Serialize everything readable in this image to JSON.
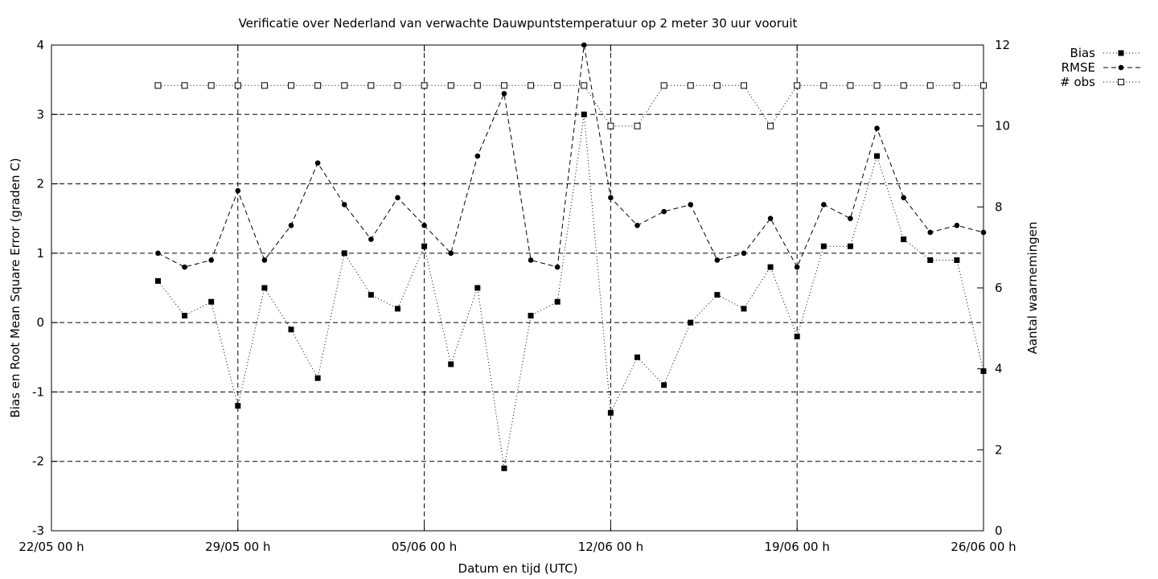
{
  "chart_data": {
    "type": "line",
    "title": "Verificatie over Nederland van verwachte Dauwpuntstemperatuur op 2 meter 30 uur vooruit",
    "xlabel": "Datum en tijd (UTC)",
    "ylabel": "Bias en Root Mean Square Error (graden C)",
    "y2label": "Aantal waarnemingen",
    "x_ticks": [
      "22/05 00 h",
      "29/05 00 h",
      "05/06 00 h",
      "12/06 00 h",
      "19/06 00 h",
      "26/06 00 h"
    ],
    "x_tick_days": [
      0,
      7,
      14,
      21,
      28,
      35
    ],
    "ylim": [
      -3,
      4
    ],
    "y_ticks": [
      -3,
      -2,
      -1,
      0,
      1,
      2,
      3,
      4
    ],
    "y2lim": [
      0,
      12
    ],
    "y2_ticks": [
      0,
      2,
      4,
      6,
      8,
      10,
      12
    ],
    "grid": true,
    "legend_position": "outside top-right",
    "x_days": [
      4,
      5,
      6,
      7,
      8,
      9,
      10,
      11,
      12,
      13,
      14,
      15,
      16,
      17,
      18,
      19,
      20,
      21,
      22,
      23,
      24,
      25,
      26,
      27,
      28,
      29,
      30,
      31,
      32,
      33,
      34,
      35
    ],
    "series": [
      {
        "name": "Bias",
        "axis": "y",
        "style": "dotted",
        "marker": "filled-square",
        "values": [
          0.6,
          0.1,
          0.3,
          -1.2,
          0.5,
          -0.1,
          -0.8,
          1.0,
          0.4,
          0.2,
          1.1,
          -0.6,
          0.5,
          -2.1,
          0.1,
          0.3,
          3.0,
          -1.3,
          -0.5,
          -0.9,
          0.0,
          0.4,
          0.2,
          0.8,
          -0.2,
          1.1,
          1.1,
          2.4,
          1.2,
          0.9,
          0.9,
          -0.7
        ]
      },
      {
        "name": "RMSE",
        "axis": "y",
        "style": "dashed",
        "marker": "filled-circle",
        "values": [
          1.0,
          0.8,
          0.9,
          1.9,
          0.9,
          1.4,
          2.3,
          1.7,
          1.2,
          1.8,
          1.4,
          1.0,
          2.4,
          3.3,
          0.9,
          0.8,
          4.0,
          1.8,
          1.4,
          1.6,
          1.7,
          0.9,
          1.0,
          1.5,
          0.8,
          1.7,
          1.5,
          2.8,
          1.8,
          1.3,
          1.4,
          1.3
        ]
      },
      {
        "name": "# obs",
        "axis": "y2",
        "style": "dotted",
        "marker": "open-square",
        "values": [
          11,
          11,
          11,
          11,
          11,
          11,
          11,
          11,
          11,
          11,
          11,
          11,
          11,
          11,
          11,
          11,
          11,
          10,
          10,
          11,
          11,
          11,
          11,
          10,
          11,
          11,
          11,
          11,
          11,
          11,
          11,
          11
        ]
      }
    ]
  }
}
